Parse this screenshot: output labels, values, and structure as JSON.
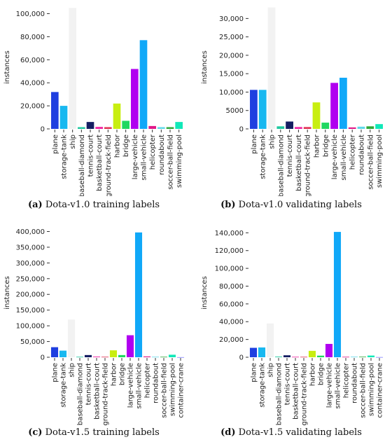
{
  "chart_data": [
    {
      "type": "bar",
      "panel_letter": "(a)",
      "caption": "Dota-v1.0 training labels",
      "ylabel": "instances",
      "ylim": [
        0,
        107000
      ],
      "yticks": [
        0,
        20000,
        40000,
        60000,
        80000,
        100000
      ],
      "ytick_labels": [
        "0",
        "20,000",
        "40,000",
        "60,000",
        "80,000",
        "100,000"
      ],
      "categories": [
        "plane",
        "storage-tank",
        "ship",
        "baseball-diamond",
        "tennis-court",
        "basketball-court",
        "ground-track-field",
        "harbor",
        "bridge",
        "large-vehicle",
        "small-vehicle",
        "helicopter",
        "roundabout",
        "soccer-ball-field",
        "swimming-pool"
      ],
      "values": [
        32000,
        20000,
        105000,
        1500,
        6000,
        1700,
        1500,
        22000,
        7000,
        52000,
        77000,
        2500,
        1500,
        1500,
        6000
      ],
      "colors": [
        "#1f3fe0",
        "#18b8f0",
        "#f2f2f2",
        "#20c8a0",
        "#141e62",
        "#f020a0",
        "#e03050",
        "#c8ee10",
        "#20d860",
        "#b000f0",
        "#10a8f8",
        "#e01888",
        "#60d8e8",
        "#30a838",
        "#10e8b8"
      ]
    },
    {
      "type": "bar",
      "panel_letter": "(b)",
      "caption": "Dota-v1.0 validating labels",
      "ylabel": "instances",
      "ylim": [
        0,
        33500
      ],
      "yticks": [
        0,
        5000,
        10000,
        15000,
        20000,
        25000,
        30000
      ],
      "ytick_labels": [
        "0",
        "5000",
        "10,000",
        "15,000",
        "20,000",
        "25,000",
        "30,000"
      ],
      "categories": [
        "plane",
        "storage-tank",
        "ship",
        "baseball-diamond",
        "tennis-court",
        "basketball-court",
        "ground-track-field",
        "harbor",
        "bridge",
        "large-vehicle",
        "small-vehicle",
        "helicopter",
        "roundabout",
        "soccer-ball-field",
        "swimming-pool"
      ],
      "values": [
        10600,
        10600,
        33000,
        700,
        2000,
        500,
        500,
        7200,
        1700,
        12500,
        13900,
        400,
        600,
        700,
        1300
      ],
      "colors": [
        "#1f3fe0",
        "#18b8f0",
        "#f2f2f2",
        "#20c8a0",
        "#141e62",
        "#f020a0",
        "#e03050",
        "#c8ee10",
        "#20d860",
        "#b000f0",
        "#10a8f8",
        "#e01888",
        "#60d8e8",
        "#30a838",
        "#10e8b8"
      ]
    },
    {
      "type": "bar",
      "panel_letter": "(c)",
      "caption": "Dota-v1.5 training labels",
      "ylabel": "instances",
      "ylim": [
        0,
        410000
      ],
      "yticks": [
        0,
        50000,
        100000,
        150000,
        200000,
        250000,
        300000,
        350000,
        400000
      ],
      "ytick_labels": [
        "0",
        "50,000",
        "100,000",
        "150,000",
        "200,000",
        "250,000",
        "300,000",
        "350,000",
        "400,000"
      ],
      "categories": [
        "plane",
        "storage-tank",
        "ship",
        "baseball-diamond",
        "tennis-court",
        "basketball-court",
        "ground-track-field",
        "harbor",
        "bridge",
        "large-vehicle",
        "small-vehicle",
        "helicopter",
        "roundabout",
        "soccer-ball-field",
        "swimming-pool",
        "container-crane"
      ],
      "values": [
        32000,
        21000,
        120000,
        1500,
        7000,
        2000,
        1500,
        22000,
        7000,
        70000,
        397000,
        2500,
        1500,
        1500,
        8000,
        300
      ],
      "colors": [
        "#1f3fe0",
        "#18b8f0",
        "#f2f2f2",
        "#20c8a0",
        "#141e62",
        "#f020a0",
        "#e03050",
        "#c8ee10",
        "#20d860",
        "#b000f0",
        "#10a8f8",
        "#e01888",
        "#60d8e8",
        "#30a838",
        "#10e8b8",
        "#8080ff"
      ]
    },
    {
      "type": "bar",
      "panel_letter": "(d)",
      "caption": "Dota-v1.5 validating labels",
      "ylabel": "instances",
      "ylim": [
        0,
        145000
      ],
      "yticks": [
        0,
        20000,
        40000,
        60000,
        80000,
        100000,
        120000,
        140000
      ],
      "ytick_labels": [
        "0",
        "20,000",
        "40,000",
        "60,000",
        "80,000",
        "100,000",
        "120,000",
        "140,000"
      ],
      "categories": [
        "plane",
        "storage-tank",
        "ship",
        "baseball-diamond",
        "tennis-court",
        "basketball-court",
        "ground-track-field",
        "harbor",
        "bridge",
        "large-vehicle",
        "small-vehicle",
        "helicopter",
        "roundabout",
        "soccer-ball-field",
        "swimming-pool",
        "container-crane"
      ],
      "values": [
        10600,
        11000,
        38000,
        700,
        2200,
        500,
        500,
        7200,
        1800,
        15000,
        141000,
        500,
        600,
        600,
        1900,
        200
      ],
      "colors": [
        "#1f3fe0",
        "#18b8f0",
        "#f2f2f2",
        "#20c8a0",
        "#141e62",
        "#f020a0",
        "#e03050",
        "#c8ee10",
        "#20d860",
        "#b000f0",
        "#10a8f8",
        "#e01888",
        "#60d8e8",
        "#30a838",
        "#10e8b8",
        "#8080ff"
      ]
    }
  ]
}
